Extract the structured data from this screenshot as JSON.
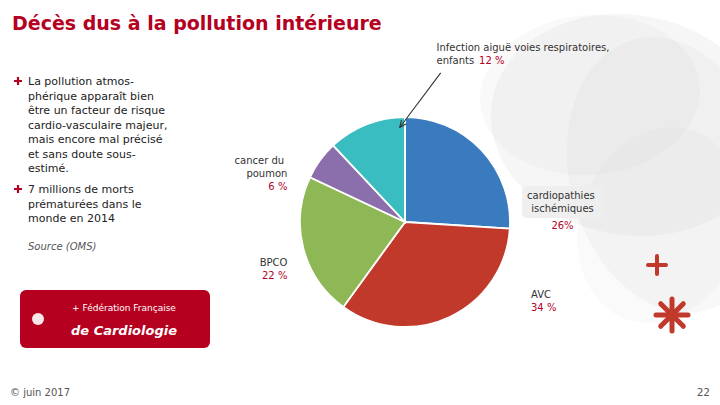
{
  "chart_data": {
    "type": "pie",
    "title": "Décès dus à la pollution intérieure",
    "categories": [
      "cardiopathies ischémiques",
      "AVC",
      "BPCO",
      "cancer du poumon",
      "Infection aiguë voies respiratoires, enfants"
    ],
    "values": [
      26,
      34,
      22,
      6,
      12
    ],
    "value_labels": [
      "26%",
      "34 %",
      "22 %",
      "6 %",
      "12 %"
    ],
    "colors": [
      "#3a7abf",
      "#c0392b",
      "#8db855",
      "#8b6fad",
      "#3abdc0"
    ],
    "annotations": [
      [
        "La pollution atmos-",
        "phérique apparaît bien",
        "être un facteur de risque",
        "cardio-vasculaire majeur,",
        "mais encore mal précisé",
        "et sans doute sous-",
        "estimé."
      ],
      [
        "7 millions de morts",
        "prématurées dans le",
        "monde en 2014"
      ],
      [
        "Source (OMS)"
      ],
      [
        "© juin 2017"
      ],
      [
        "22"
      ],
      [
        "+ Fédération Française",
        "de Cardiologie"
      ]
    ]
  }
}
